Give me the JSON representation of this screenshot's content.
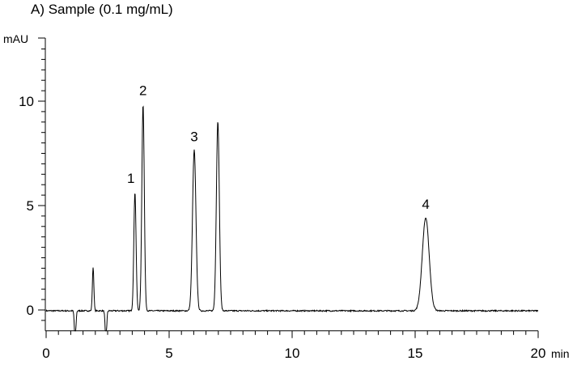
{
  "chart_data": {
    "type": "line",
    "title": "A) Sample (0.1 mg/mL)",
    "xlabel": "min",
    "ylabel": "mAU",
    "xlim": [
      0,
      20
    ],
    "ylim": [
      -1,
      13
    ],
    "x_ticks": [
      "0",
      "5",
      "10",
      "15",
      "20"
    ],
    "y_ticks": [
      "0",
      "5",
      "10"
    ],
    "grid": false,
    "line_color": "#000000",
    "peaks": [
      {
        "label": "",
        "rt": 1.18,
        "height": -1.5,
        "width": 0.03
      },
      {
        "label": "",
        "rt": 1.91,
        "height": 2.1,
        "width": 0.03
      },
      {
        "label": "",
        "rt": 2.43,
        "height": -1.5,
        "width": 0.03
      },
      {
        "label": "1",
        "rt": 3.61,
        "height": 5.7,
        "width": 0.045
      },
      {
        "label": "2",
        "rt": 3.94,
        "height": 9.9,
        "width": 0.05
      },
      {
        "label": "3",
        "rt": 6.02,
        "height": 7.7,
        "width": 0.07
      },
      {
        "label": "",
        "rt": 6.98,
        "height": 9.1,
        "width": 0.06
      },
      {
        "label": "4",
        "rt": 15.43,
        "height": 4.45,
        "width": 0.14
      }
    ]
  }
}
